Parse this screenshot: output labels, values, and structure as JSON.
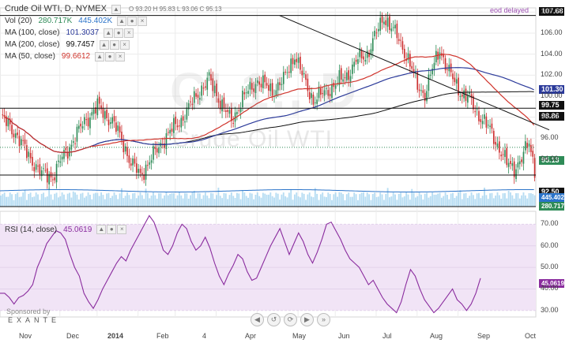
{
  "header": {
    "symbol_title": "Crude Oil WTI, D, NYMEX",
    "ohlc": "O 93.20 H 95.83 L 93.06 C 95.13",
    "delayed": "eod delayed"
  },
  "watermark": {
    "symbol": "CL1!, D",
    "name": "Crude Oil WTI"
  },
  "legend": {
    "vol_label": "Vol (20)",
    "vol_v1": "280.717K",
    "vol_v2": "445.402K",
    "ma100_label": "MA (100, close)",
    "ma100_value": "101.3037",
    "ma200_label": "MA (200, close)",
    "ma200_value": "99.7457",
    "ma50_label": "MA (50, close)",
    "ma50_value": "99.6612",
    "rsi_label": "RSI (14, close)",
    "rsi_value": "45.0619",
    "btn_up": "▲",
    "btn_close": "×",
    "btn_eye": "●"
  },
  "price_labels": {
    "l10768": "107.68",
    "l10130": "101.30",
    "l9975": "99.75",
    "l9886": "98.86",
    "l9513": "95.13",
    "l9250": "92.50",
    "lvol1": "445.402K",
    "lvol2": "280.717K",
    "rsi_last": "45.0619"
  },
  "sponsor": {
    "line1": "Sponsored by",
    "line2": "EXANTE"
  },
  "nav": [
    "◀",
    "↺",
    "⟳",
    "▶",
    "»"
  ],
  "colors": {
    "up": "#2e8b57",
    "down": "#cc2f2f",
    "ma50": "#d0342c",
    "ma100": "#2b3a9a",
    "ma200": "#111111",
    "rsi": "#8a2c9e",
    "rsi_bg": "#f1e4f6",
    "vol": "#9fd1ef"
  },
  "chart_data": [
    {
      "type": "candlestick",
      "title": "Crude Oil WTI, D, NYMEX",
      "x_ticks": [
        "Nov",
        "Dec",
        "2014",
        "Feb",
        "4",
        "Apr",
        "May",
        "Jun",
        "Jul",
        "Aug",
        "Sep",
        "Oct"
      ],
      "y_ticks": [
        94,
        96,
        98,
        100,
        102,
        104,
        106,
        108
      ],
      "ylim": [
        89.5,
        108.4
      ],
      "horizontal_levels": [
        107.68,
        98.86,
        92.5
      ],
      "trendline": [
        [
          140,
          107.68
        ],
        [
          285,
          96.8
        ]
      ],
      "anchors": [
        [
          0,
          98.0
        ],
        [
          8,
          96.5
        ],
        [
          14,
          94.6
        ],
        [
          22,
          92.6
        ],
        [
          28,
          92.4
        ],
        [
          32,
          93.8
        ],
        [
          38,
          95.5
        ],
        [
          45,
          97.6
        ],
        [
          52,
          99.0
        ],
        [
          60,
          97.6
        ],
        [
          66,
          95.5
        ],
        [
          70,
          93.6
        ],
        [
          75,
          92.5
        ],
        [
          80,
          93.8
        ],
        [
          88,
          96.0
        ],
        [
          98,
          98.0
        ],
        [
          106,
          100.3
        ],
        [
          112,
          101.6
        ],
        [
          118,
          99.5
        ],
        [
          124,
          97.6
        ],
        [
          130,
          99.8
        ],
        [
          138,
          101.5
        ],
        [
          146,
          100.5
        ],
        [
          152,
          101.5
        ],
        [
          158,
          104.0
        ],
        [
          162,
          102.0
        ],
        [
          168,
          99.6
        ],
        [
          173,
          100.2
        ],
        [
          179,
          101.0
        ],
        [
          186,
          102.0
        ],
        [
          192,
          103.5
        ],
        [
          197,
          104.0
        ],
        [
          202,
          106.0
        ],
        [
          206,
          107.6
        ],
        [
          210,
          106.5
        ],
        [
          214,
          105.4
        ],
        [
          219,
          103.5
        ],
        [
          224,
          101.0
        ],
        [
          228,
          100.2
        ],
        [
          232,
          102.5
        ],
        [
          236,
          104.6
        ],
        [
          240,
          102.5
        ],
        [
          244,
          101.4
        ],
        [
          248,
          100.2
        ],
        [
          252,
          99.7
        ],
        [
          256,
          98.5
        ],
        [
          260,
          97.5
        ],
        [
          264,
          96.5
        ],
        [
          268,
          95.0
        ],
        [
          272,
          93.6
        ],
        [
          276,
          93.2
        ],
        [
          280,
          94.0
        ],
        [
          284,
          95.6
        ],
        [
          287,
          93.2
        ]
      ],
      "moving_averages": [
        {
          "name": "MA (50, close)",
          "last": 99.6612
        },
        {
          "name": "MA (100, close)",
          "last": 101.3037
        },
        {
          "name": "MA (200, close)",
          "last": 99.7457
        }
      ],
      "volume": {
        "name": "Vol (20)",
        "values": [
          "280.717K",
          "445.402K"
        ]
      }
    },
    {
      "type": "line",
      "title": "RSI (14, close)",
      "y_ticks": [
        30,
        40,
        50,
        60,
        70
      ],
      "ylim": [
        27,
        76
      ],
      "last": 45.0619,
      "values": [
        38,
        38,
        36,
        33,
        36,
        37,
        39,
        42,
        50,
        55,
        61,
        64,
        67,
        66,
        63,
        56,
        50,
        46,
        38,
        34,
        31,
        35,
        40,
        44,
        48,
        52,
        55,
        53,
        58,
        62,
        66,
        70,
        74,
        71,
        65,
        58,
        56,
        60,
        66,
        70,
        68,
        62,
        58,
        60,
        64,
        59,
        52,
        46,
        42,
        47,
        51,
        56,
        54,
        48,
        44,
        45,
        50,
        55,
        60,
        64,
        68,
        62,
        56,
        61,
        66,
        62,
        56,
        52,
        57,
        63,
        70,
        71,
        67,
        63,
        58,
        54,
        52,
        50,
        46,
        42,
        44,
        40,
        36,
        33,
        31,
        29,
        34,
        42,
        49,
        46,
        40,
        35,
        32,
        29,
        31,
        34,
        37,
        40,
        35,
        33,
        30,
        33,
        38,
        45
      ]
    }
  ]
}
